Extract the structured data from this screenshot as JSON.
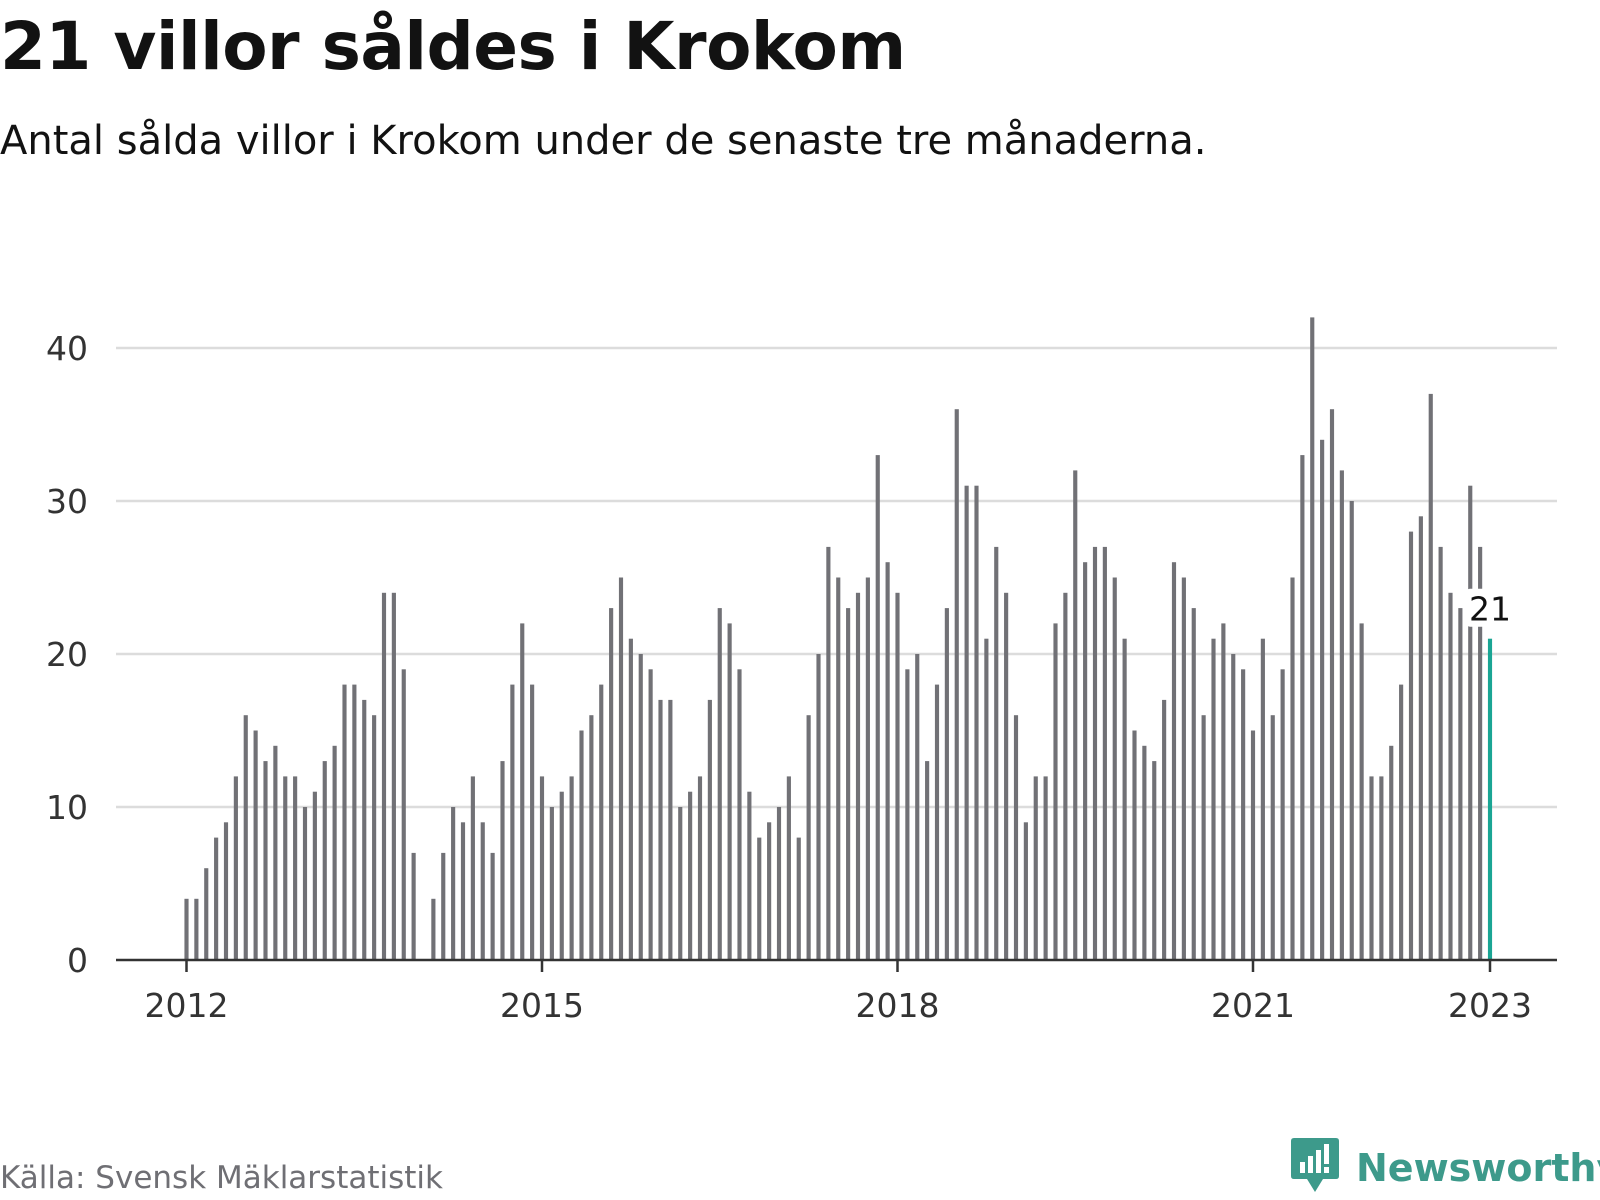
{
  "header": {
    "title": "21 villor såldes i Krokom",
    "subtitle": "Antal sålda villor i Krokom under de senaste tre månaderna."
  },
  "footer": {
    "source": "Källa: Svensk Mäklarstatistik",
    "brand": "Newsworthy",
    "brand_icon": "bar-chart-speech-bubble-icon"
  },
  "colors": {
    "bar": "#717176",
    "highlight": "#1aa594",
    "grid": "#dcdcdc",
    "axis": "#333333",
    "brand": "#3d9a8b"
  },
  "chart_data": {
    "type": "bar",
    "title": "21 villor såldes i Krokom",
    "subtitle": "Antal sålda villor i Krokom under de senaste tre månaderna.",
    "xlabel": "",
    "ylabel": "",
    "ylim": [
      0,
      45
    ],
    "yticks": [
      0,
      10,
      20,
      30,
      40
    ],
    "xticks": [
      "2012",
      "2015",
      "2018",
      "2021",
      "2023"
    ],
    "grid": true,
    "legend": "none",
    "start": "2012-01",
    "end": "2023-01",
    "frequency": "monthly, rolling three-month totals",
    "values": [
      4,
      4,
      6,
      8,
      9,
      12,
      16,
      15,
      13,
      14,
      12,
      12,
      10,
      11,
      13,
      14,
      18,
      18,
      17,
      16,
      24,
      24,
      19,
      7,
      null,
      4,
      7,
      10,
      9,
      12,
      9,
      7,
      13,
      18,
      22,
      18,
      12,
      10,
      11,
      12,
      15,
      16,
      18,
      23,
      25,
      21,
      20,
      19,
      17,
      17,
      10,
      11,
      12,
      17,
      23,
      22,
      19,
      11,
      8,
      9,
      10,
      12,
      8,
      16,
      20,
      27,
      25,
      23,
      24,
      25,
      33,
      26,
      24,
      19,
      20,
      13,
      18,
      23,
      36,
      31,
      31,
      21,
      27,
      24,
      16,
      9,
      12,
      12,
      22,
      24,
      32,
      26,
      27,
      27,
      25,
      21,
      15,
      14,
      13,
      17,
      26,
      25,
      23,
      16,
      21,
      22,
      20,
      19,
      15,
      21,
      16,
      19,
      25,
      33,
      42,
      34,
      36,
      32,
      30,
      22,
      12,
      12,
      14,
      18,
      28,
      29,
      37,
      27,
      24,
      23,
      31,
      27,
      21
    ],
    "highlight": {
      "value": 21,
      "label": "21"
    }
  }
}
